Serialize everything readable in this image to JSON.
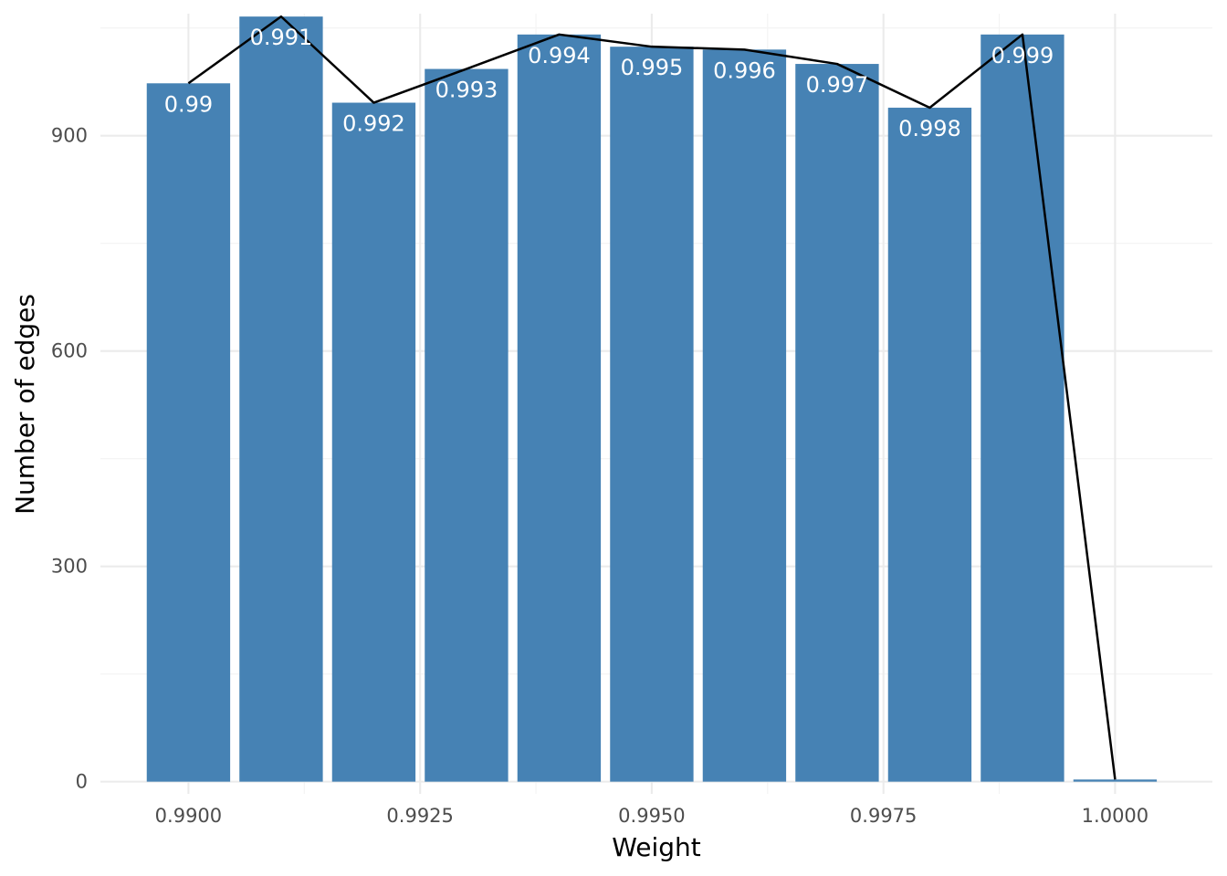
{
  "chart_data": {
    "type": "bar",
    "title": "",
    "xlabel": "Weight",
    "ylabel": "Number of edges",
    "xlim": [
      0.98905,
      1.00105
    ],
    "ylim": [
      -17,
      1070
    ],
    "x_ticks": [
      {
        "value": 0.99,
        "label": "0.9900"
      },
      {
        "value": 0.9925,
        "label": "0.9925"
      },
      {
        "value": 0.995,
        "label": "0.9950"
      },
      {
        "value": 0.9975,
        "label": "0.9975"
      },
      {
        "value": 1.0,
        "label": "1.0000"
      }
    ],
    "y_ticks": [
      {
        "value": 0,
        "label": "0"
      },
      {
        "value": 300,
        "label": "300"
      },
      {
        "value": 600,
        "label": "600"
      },
      {
        "value": 900,
        "label": "900"
      }
    ],
    "bar_width": 0.0009,
    "x": [
      0.99,
      0.991,
      0.992,
      0.993,
      0.994,
      0.995,
      0.996,
      0.997,
      0.998,
      0.999,
      1.0
    ],
    "bar_labels": [
      "0.99",
      "0.991",
      "0.992",
      "0.993",
      "0.994",
      "0.995",
      "0.996",
      "0.997",
      "0.998",
      "0.999",
      ""
    ],
    "values": [
      973,
      1066,
      946,
      993,
      1041,
      1024,
      1020,
      1000,
      939,
      1041,
      3
    ],
    "line": {
      "x": [
        0.99,
        0.991,
        0.992,
        0.993,
        0.994,
        0.995,
        0.996,
        0.997,
        0.998,
        0.999,
        1.0
      ],
      "y": [
        973,
        1066,
        946,
        993,
        1041,
        1024,
        1020,
        1000,
        939,
        1041,
        3
      ]
    },
    "grid": true,
    "legend": "none",
    "colors": {
      "bar": "#4682b4",
      "line": "#000000"
    }
  }
}
